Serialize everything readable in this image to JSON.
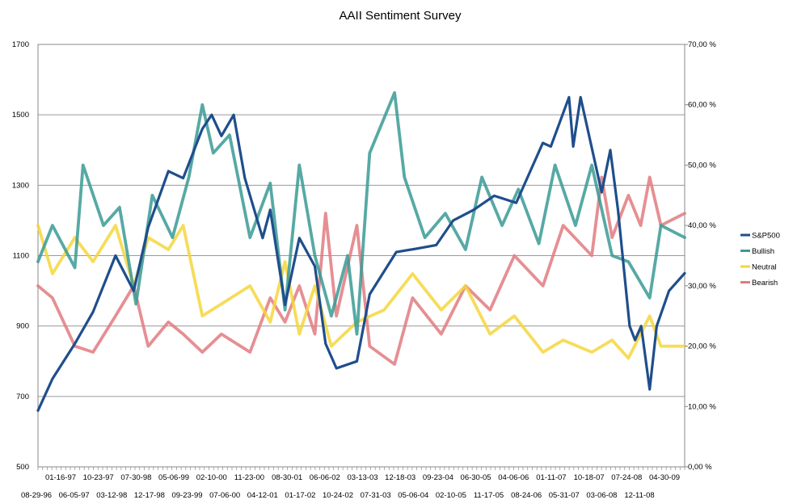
{
  "chart_data": {
    "type": "line",
    "title": "AAII Sentiment Survey",
    "y_left": {
      "min": 500,
      "max": 1700,
      "ticks": [
        "500",
        "700",
        "900",
        "1100",
        "1300",
        "1500",
        "1700"
      ]
    },
    "y_right": {
      "min": 0,
      "max": 70,
      "ticks": [
        "0,00 %",
        "10,00 %",
        "20,00 %",
        "30,00 %",
        "40,00 %",
        "50,00 %",
        "60,00 %",
        "70,00 %"
      ]
    },
    "x_labels_row1": [
      "01-16-97",
      "10-23-97",
      "07-30-98",
      "05-06-99",
      "02-10-00",
      "11-23-00",
      "08-30-01",
      "06-06-02",
      "03-13-03",
      "12-18-03",
      "09-23-04",
      "06-30-05",
      "04-06-06",
      "01-11-07",
      "10-18-07",
      "07-24-08",
      "04-30-09"
    ],
    "x_labels_row2": [
      "08-29-96",
      "06-05-97",
      "03-12-98",
      "12-17-98",
      "09-23-99",
      "07-06-00",
      "04-12-01",
      "01-17-02",
      "10-24-02",
      "07-31-03",
      "05-06-04",
      "02-10-05",
      "11-17-05",
      "08-24-06",
      "05-31-07",
      "03-06-08",
      "12-11-08"
    ],
    "x_range": [
      "1996-08-29",
      "2009-11-26"
    ],
    "legend_position": "right",
    "grid": "horizontal",
    "colors": {
      "sp500": "#1f4e8c",
      "bullish": "#3a9a94",
      "neutral": "#f5d63c",
      "bearish": "#e07b80"
    },
    "series": [
      {
        "name": "S&P500",
        "axis": "left",
        "x": [
          "1996-08-29",
          "1996-12-15",
          "1997-06-01",
          "1997-10-15",
          "1998-04-01",
          "1998-08-15",
          "1998-12-01",
          "1999-05-01",
          "1999-08-20",
          "2000-01-10",
          "2000-03-20",
          "2000-06-01",
          "2000-09-01",
          "2000-11-23",
          "2001-04-05",
          "2001-06-01",
          "2001-09-20",
          "2002-01-05",
          "2002-05-01",
          "2002-07-20",
          "2002-10-09",
          "2003-03-11",
          "2003-06-15",
          "2003-12-31",
          "2004-06-01",
          "2004-10-25",
          "2005-03-01",
          "2005-08-01",
          "2006-01-01",
          "2006-06-15",
          "2006-12-31",
          "2007-03-01",
          "2007-07-15",
          "2007-08-15",
          "2007-10-09",
          "2008-03-15",
          "2008-05-19",
          "2008-07-15",
          "2008-10-10",
          "2008-11-20",
          "2009-01-05",
          "2009-03-09",
          "2009-05-01",
          "2009-08-01",
          "2009-11-26"
        ],
        "values": [
          660,
          750,
          850,
          940,
          1100,
          1000,
          1180,
          1340,
          1320,
          1460,
          1500,
          1440,
          1500,
          1320,
          1150,
          1230,
          960,
          1150,
          1070,
          850,
          780,
          800,
          990,
          1110,
          1120,
          1130,
          1200,
          1230,
          1270,
          1250,
          1420,
          1410,
          1550,
          1410,
          1550,
          1280,
          1400,
          1230,
          900,
          860,
          900,
          720,
          900,
          1000,
          1050
        ]
      },
      {
        "name": "Bullish",
        "axis": "right",
        "x": [
          "1996-08-29",
          "1996-12-15",
          "1997-06-01",
          "1997-08-01",
          "1998-01-01",
          "1998-05-01",
          "1998-09-01",
          "1999-01-01",
          "1999-06-01",
          "1999-10-01",
          "2000-01-10",
          "2000-04-01",
          "2000-08-01",
          "2001-01-01",
          "2001-06-01",
          "2001-09-20",
          "2002-01-05",
          "2002-05-01",
          "2002-09-01",
          "2003-01-01",
          "2003-03-11",
          "2003-06-15",
          "2003-12-18",
          "2004-03-01",
          "2004-08-01",
          "2005-01-01",
          "2005-06-01",
          "2005-10-01",
          "2006-03-01",
          "2006-07-01",
          "2006-12-01",
          "2007-04-01",
          "2007-09-01",
          "2008-01-01",
          "2008-06-01",
          "2008-10-01",
          "2009-03-09",
          "2009-06-01",
          "2009-11-26"
        ],
        "values": [
          34,
          40,
          33,
          50,
          40,
          43,
          27,
          45,
          38,
          48,
          60,
          52,
          55,
          38,
          47,
          26,
          50,
          35,
          25,
          35,
          22,
          52,
          62,
          48,
          38,
          42,
          36,
          48,
          40,
          46,
          37,
          50,
          40,
          50,
          35,
          34,
          28,
          40,
          38
        ]
      },
      {
        "name": "Neutral",
        "axis": "right",
        "x": [
          "1996-08-29",
          "1996-12-15",
          "1997-06-01",
          "1997-10-15",
          "1998-04-01",
          "1998-08-15",
          "1998-12-01",
          "1999-05-01",
          "1999-08-20",
          "2000-01-10",
          "2000-06-01",
          "2001-01-01",
          "2001-06-01",
          "2001-09-20",
          "2002-01-05",
          "2002-05-01",
          "2002-09-01",
          "2003-03-11",
          "2003-10-01",
          "2004-05-01",
          "2004-12-01",
          "2005-06-01",
          "2005-12-01",
          "2006-06-01",
          "2007-01-01",
          "2007-06-01",
          "2008-01-01",
          "2008-06-01",
          "2008-10-01",
          "2009-03-09",
          "2009-06-01",
          "2009-11-26"
        ],
        "values": [
          40,
          32,
          38,
          34,
          40,
          30,
          38,
          36,
          40,
          25,
          27,
          30,
          24,
          34,
          22,
          30,
          20,
          24,
          26,
          32,
          26,
          30,
          22,
          25,
          19,
          21,
          19,
          21,
          18,
          25,
          20,
          20
        ]
      },
      {
        "name": "Bearish",
        "axis": "right",
        "x": [
          "1996-08-29",
          "1996-12-15",
          "1997-06-01",
          "1997-10-15",
          "1998-04-01",
          "1998-08-15",
          "1998-12-01",
          "1999-05-01",
          "1999-08-20",
          "2000-01-10",
          "2000-06-01",
          "2001-01-01",
          "2001-06-01",
          "2001-09-20",
          "2002-01-05",
          "2002-05-01",
          "2002-07-20",
          "2002-10-09",
          "2003-03-11",
          "2003-06-15",
          "2003-12-18",
          "2004-05-01",
          "2004-12-01",
          "2005-06-01",
          "2005-12-01",
          "2006-06-01",
          "2007-01-01",
          "2007-06-01",
          "2008-01-01",
          "2008-03-15",
          "2008-06-01",
          "2008-10-01",
          "2009-01-01",
          "2009-03-09",
          "2009-06-01",
          "2009-11-26"
        ],
        "values": [
          30,
          28,
          20,
          19,
          25,
          30,
          20,
          24,
          22,
          19,
          22,
          19,
          28,
          24,
          30,
          22,
          42,
          25,
          40,
          20,
          17,
          28,
          22,
          30,
          26,
          35,
          30,
          40,
          35,
          48,
          38,
          45,
          40,
          48,
          40,
          42
        ]
      }
    ]
  }
}
